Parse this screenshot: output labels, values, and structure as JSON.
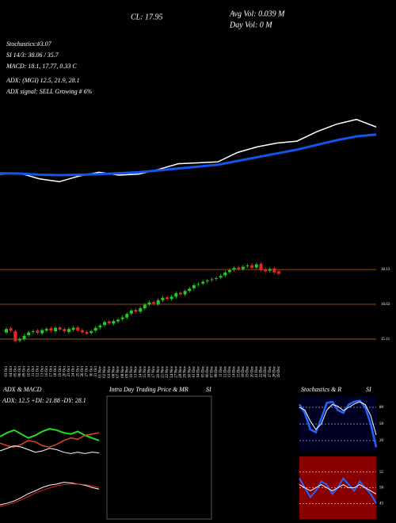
{
  "header": {
    "legend": [
      "Stochastics:#3.07",
      "SI 14/3: 38.06 / 35.7",
      "MACD: 18.1, 17.77, 0.33 C",
      "ADX: (MGI) 12.5, 21.9, 28.1",
      "ADX signal: SELL Growing # 6%"
    ],
    "close": "CL: 17.95",
    "avg_vol": "Avg Vol: 0.039 M",
    "day_vol": "Day Vol: 0 M",
    "intraday_title": "Intra Day Trading Price & MR",
    "intraday_title2": "SI"
  },
  "chart_data": [
    {
      "type": "line",
      "ylim": [
        14.6,
        18.8
      ],
      "background": "#000000",
      "series": [
        {
          "color": "#ffffff",
          "width": 1.5,
          "values": [
            15.45,
            15.5,
            15.2,
            15.05,
            15.35,
            15.55,
            15.4,
            15.45,
            15.7,
            16.0,
            16.05,
            16.1,
            16.6,
            16.9,
            17.1,
            17.2,
            17.7,
            18.1,
            18.35,
            17.95
          ]
        },
        {
          "color": "#1155ee",
          "width": 3,
          "values": [
            15.5,
            15.48,
            15.42,
            15.4,
            15.42,
            15.45,
            15.5,
            15.55,
            15.65,
            15.75,
            15.85,
            15.95,
            16.15,
            16.35,
            16.55,
            16.75,
            17.0,
            17.25,
            17.45,
            17.55
          ]
        }
      ]
    },
    {
      "type": "candlestick",
      "ylim": [
        14.18,
        18.89
      ],
      "yticks": [
        18.13,
        16.62,
        15.11
      ],
      "grid": true,
      "grid_color": "#b5651d",
      "up_color": "#22cc22",
      "down_color": "#ee2222",
      "categories": [
        "03 Oct",
        "04 Oct",
        "05 Oct",
        "06 Oct",
        "09 Oct",
        "10 Oct",
        "11 Oct",
        "12 Oct",
        "13 Oct",
        "16 Oct",
        "17 Oct",
        "18 Oct",
        "19 Oct",
        "20 Oct",
        "23 Oct",
        "24 Oct",
        "25 Oct",
        "26 Oct",
        "27 Oct",
        "30 Oct",
        "31 Oct",
        "01 Nov",
        "02 Nov",
        "03 Nov",
        "06 Nov",
        "07 Nov",
        "08 Nov",
        "09 Nov",
        "10 Nov",
        "13 Nov",
        "14 Nov",
        "15 Nov",
        "16 Nov",
        "17 Nov",
        "20 Nov",
        "21 Nov",
        "22 Nov",
        "24 Nov",
        "27 Nov",
        "28 Nov",
        "29 Nov",
        "30 Nov",
        "01 Dec",
        "04 Dec",
        "05 Dec",
        "06 Dec",
        "07 Dec",
        "08 Dec",
        "11 Dec",
        "12 Dec",
        "13 Dec",
        "14 Dec",
        "15 Dec",
        "18 Dec",
        "19 Dec",
        "20 Dec",
        "21 Dec",
        "22 Dec",
        "26 Dec",
        "27 Dec",
        "28 Dec",
        "29 Dec"
      ],
      "open": [
        15.4,
        15.58,
        15.45,
        15.05,
        15.12,
        15.28,
        15.42,
        15.48,
        15.36,
        15.48,
        15.58,
        15.45,
        15.62,
        15.55,
        15.42,
        15.52,
        15.62,
        15.5,
        15.42,
        15.38,
        15.48,
        15.62,
        15.72,
        15.88,
        15.78,
        15.88,
        15.98,
        16.05,
        16.22,
        16.38,
        16.3,
        16.45,
        16.62,
        16.72,
        16.62,
        16.8,
        16.92,
        16.85,
        16.95,
        17.12,
        17.05,
        17.2,
        17.32,
        17.48,
        17.52,
        17.62,
        17.68,
        17.72,
        17.78,
        17.88,
        18.02,
        18.12,
        18.22,
        18.15,
        18.28,
        18.32,
        18.22,
        18.38,
        18.15,
        18.08,
        18.18,
        18.05
      ],
      "high": [
        15.63,
        15.66,
        15.53,
        15.18,
        15.33,
        15.48,
        15.53,
        15.56,
        15.58,
        15.63,
        15.66,
        15.68,
        15.7,
        15.63,
        15.63,
        15.68,
        15.7,
        15.58,
        15.5,
        15.53,
        15.68,
        15.78,
        15.93,
        15.96,
        15.98,
        16.03,
        16.13,
        16.28,
        16.43,
        16.46,
        16.53,
        16.68,
        16.78,
        16.8,
        16.88,
        16.98,
        17.0,
        17.03,
        17.18,
        17.2,
        17.28,
        17.38,
        17.53,
        17.58,
        17.68,
        17.73,
        17.78,
        17.83,
        17.93,
        18.08,
        18.18,
        18.28,
        18.3,
        18.33,
        18.38,
        18.4,
        18.43,
        18.46,
        18.23,
        18.23,
        18.26,
        18.13
      ],
      "low": [
        15.32,
        15.4,
        14.94,
        14.97,
        15.04,
        15.2,
        15.34,
        15.3,
        15.28,
        15.4,
        15.4,
        15.37,
        15.44,
        15.37,
        15.34,
        15.44,
        15.4,
        15.32,
        15.27,
        15.3,
        15.4,
        15.54,
        15.64,
        15.72,
        15.7,
        15.8,
        15.9,
        15.97,
        16.14,
        16.22,
        16.22,
        16.37,
        16.54,
        16.57,
        16.54,
        16.72,
        16.77,
        16.77,
        16.87,
        16.97,
        16.97,
        17.12,
        17.24,
        17.4,
        17.44,
        17.54,
        17.6,
        17.64,
        17.7,
        17.8,
        17.94,
        18.04,
        18.07,
        18.07,
        18.2,
        18.12,
        18.14,
        18.02,
        17.97,
        18.0,
        17.92,
        17.87
      ],
      "close": [
        15.55,
        15.48,
        15.02,
        15.1,
        15.25,
        15.4,
        15.45,
        15.38,
        15.5,
        15.55,
        15.48,
        15.6,
        15.52,
        15.45,
        15.55,
        15.6,
        15.48,
        15.4,
        15.35,
        15.45,
        15.6,
        15.7,
        15.85,
        15.8,
        15.9,
        15.95,
        16.05,
        16.2,
        16.35,
        16.3,
        16.45,
        16.6,
        16.7,
        16.65,
        16.8,
        16.9,
        16.85,
        16.95,
        17.1,
        17.05,
        17.2,
        17.3,
        17.45,
        17.5,
        17.6,
        17.65,
        17.7,
        17.75,
        17.85,
        18.0,
        18.1,
        18.2,
        18.15,
        18.25,
        18.3,
        18.2,
        18.35,
        18.1,
        18.05,
        18.15,
        18.0,
        17.95
      ]
    },
    {
      "type": "line",
      "title": "ADX & MACD",
      "subtitle": "ADX: 12.5  +DI: 21.88  -DY: 28.1",
      "ylim": [
        0,
        50
      ],
      "background": "#000000",
      "series": [
        {
          "color": "#22dd22",
          "width": 2,
          "values": [
            25,
            28,
            30,
            27,
            24,
            26,
            29,
            31,
            30,
            28,
            27,
            29,
            26,
            24,
            22
          ]
        },
        {
          "color": "#dd4422",
          "width": 1.5,
          "values": [
            20,
            18,
            17,
            19,
            22,
            21,
            18,
            17,
            19,
            22,
            24,
            23,
            26,
            27,
            28
          ]
        },
        {
          "color": "#ffffff",
          "width": 1,
          "values": [
            14,
            16,
            18,
            17,
            15,
            13,
            14,
            16,
            15,
            13,
            12,
            13,
            12,
            13,
            12.5
          ]
        }
      ]
    },
    {
      "type": "line",
      "ylim": [
        -0.2,
        0.6
      ],
      "background": "#000000",
      "series": [
        {
          "color": "#ffffff",
          "width": 1,
          "values": [
            0.05,
            0.08,
            0.12,
            0.18,
            0.25,
            0.3,
            0.36,
            0.4,
            0.42,
            0.45,
            0.44,
            0.42,
            0.4,
            0.36,
            0.33
          ]
        },
        {
          "color": "#dd2222",
          "width": 1,
          "values": [
            0.02,
            0.05,
            0.09,
            0.14,
            0.2,
            0.26,
            0.31,
            0.35,
            0.39,
            0.41,
            0.42,
            0.42,
            0.41,
            0.39,
            0.36
          ]
        }
      ]
    },
    {
      "type": "line",
      "title": "Stochastics & R",
      "title2": "SI",
      "ylim": [
        0,
        100
      ],
      "yticks": [
        20,
        50,
        80
      ],
      "grid": true,
      "grid_color": "#ffffff",
      "background": "#000022",
      "series": [
        {
          "color": "#2266ff",
          "width": 2.5,
          "values": [
            85,
            70,
            40,
            35,
            60,
            88,
            90,
            75,
            70,
            85,
            90,
            92,
            80,
            50,
            8
          ]
        },
        {
          "color": "#ffffff",
          "width": 1,
          "values": [
            80,
            75,
            55,
            40,
            50,
            75,
            85,
            82,
            74,
            80,
            86,
            90,
            85,
            65,
            30
          ]
        }
      ]
    },
    {
      "type": "line",
      "ylim": [
        40,
        60
      ],
      "yticks": [
        45,
        50,
        55
      ],
      "grid": true,
      "grid_color": "#ffffff",
      "background": "#880000",
      "series": [
        {
          "color": "#2266ff",
          "width": 2,
          "values": [
            53,
            50,
            47,
            49,
            52,
            51,
            48,
            50,
            53,
            51,
            49,
            52,
            50,
            48,
            45
          ]
        },
        {
          "color": "#ffffff",
          "width": 1,
          "values": [
            51,
            50,
            49,
            50,
            51,
            50,
            49,
            50,
            51,
            50,
            50,
            51,
            50,
            49,
            48
          ]
        }
      ]
    }
  ]
}
